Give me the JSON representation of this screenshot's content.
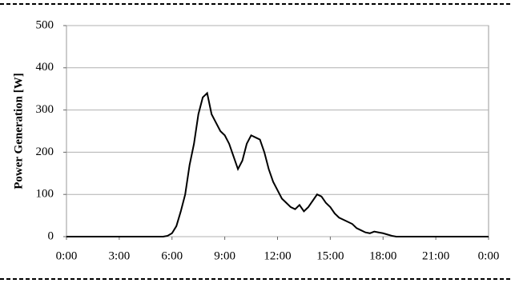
{
  "chart_data": {
    "type": "line",
    "y_label": "Power Generation [W]",
    "x": [
      0,
      5.25,
      5.5,
      5.75,
      6.0,
      6.25,
      6.5,
      6.75,
      7.0,
      7.25,
      7.5,
      7.75,
      8.0,
      8.25,
      8.5,
      8.75,
      9.0,
      9.25,
      9.5,
      9.75,
      10.0,
      10.25,
      10.5,
      10.75,
      11.0,
      11.25,
      11.5,
      11.75,
      12.0,
      12.25,
      12.5,
      12.75,
      13.0,
      13.25,
      13.5,
      13.75,
      14.0,
      14.25,
      14.5,
      14.75,
      15.0,
      15.25,
      15.5,
      15.75,
      16.0,
      16.25,
      16.5,
      16.75,
      17.0,
      17.25,
      17.5,
      17.75,
      18.0,
      18.25,
      18.5,
      18.75,
      19.0,
      24
    ],
    "values": [
      0,
      0,
      0,
      2,
      8,
      25,
      60,
      100,
      170,
      220,
      290,
      330,
      340,
      290,
      270,
      250,
      240,
      220,
      190,
      160,
      180,
      220,
      240,
      235,
      230,
      200,
      160,
      130,
      110,
      90,
      80,
      70,
      65,
      75,
      60,
      70,
      85,
      100,
      95,
      80,
      70,
      55,
      45,
      40,
      35,
      30,
      20,
      15,
      10,
      8,
      12,
      10,
      8,
      5,
      2,
      0,
      0,
      0
    ],
    "color": "#000000",
    "xlim": [
      0,
      24
    ],
    "xticks": [
      {
        "value": 0,
        "label": "0:00"
      },
      {
        "value": 3,
        "label": "3:00"
      },
      {
        "value": 6,
        "label": "6:00"
      },
      {
        "value": 9,
        "label": "9:00"
      },
      {
        "value": 12,
        "label": "12:00"
      },
      {
        "value": 15,
        "label": "15:00"
      },
      {
        "value": 18,
        "label": "18:00"
      },
      {
        "value": 21,
        "label": "21:00"
      },
      {
        "value": 24,
        "label": "0:00"
      }
    ],
    "ylim": [
      0,
      500
    ],
    "yticks": [
      0,
      100,
      200,
      300,
      400,
      500
    ],
    "grid": true
  }
}
